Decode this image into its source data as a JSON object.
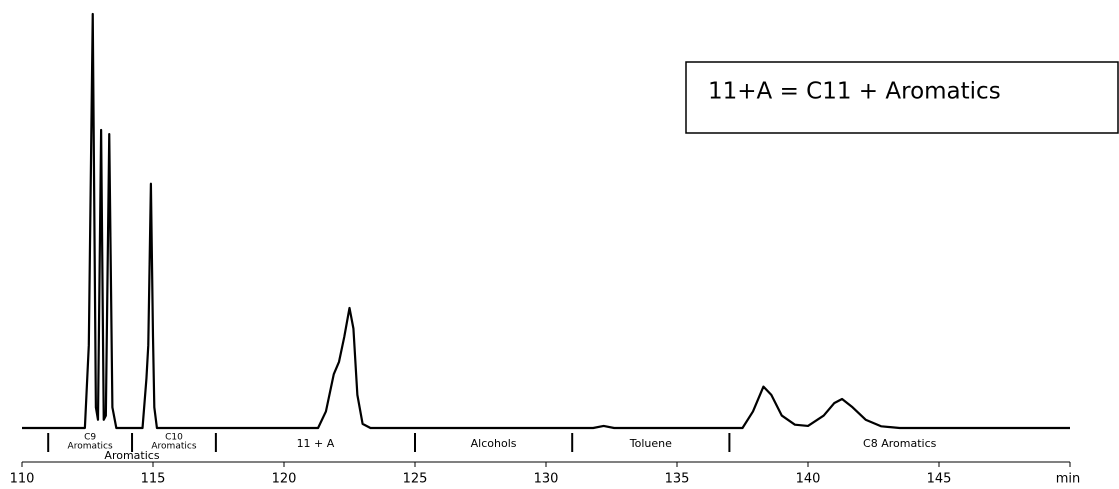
{
  "chart_data": {
    "type": "line",
    "note": "11+A = C11 + Aromatics",
    "x": [
      110,
      112.4,
      112.55,
      112.7,
      112.82,
      112.9,
      113.02,
      113.12,
      113.2,
      113.33,
      113.45,
      113.6,
      114.6,
      114.75,
      114.82,
      114.92,
      115.0,
      115.05,
      115.15,
      121.3,
      121.6,
      121.9,
      122.1,
      122.3,
      122.5,
      122.65,
      122.8,
      123.0,
      123.3,
      131.8,
      132.2,
      132.6,
      137.5,
      137.9,
      138.3,
      138.6,
      139.0,
      139.5,
      140.0,
      140.6,
      141.0,
      141.3,
      141.7,
      142.2,
      142.8,
      143.5,
      150
    ],
    "values": [
      0,
      0,
      20,
      100,
      5,
      2,
      72,
      2,
      3,
      71,
      5,
      0,
      0,
      12,
      20,
      59,
      22,
      5,
      0,
      0,
      4,
      13,
      16,
      22,
      29,
      24,
      8,
      1,
      0,
      0,
      0.5,
      0,
      0,
      4,
      10,
      8,
      3,
      0.8,
      0.5,
      3,
      6,
      7,
      5,
      2,
      0.4,
      0,
      0
    ],
    "color": "#000000",
    "xlim": [
      110,
      150
    ],
    "ylim": [
      0,
      100
    ],
    "xticks": [
      110,
      115,
      120,
      125,
      130,
      135,
      140,
      145,
      {
        "value": 150,
        "label": "min"
      }
    ],
    "dividers": [
      111.0,
      114.2,
      117.4,
      125.0,
      131.0,
      137.0
    ],
    "regions": [
      [
        "C9",
        "Aromatics"
      ],
      [
        "C10",
        "Aromatics"
      ],
      [
        "11 + A"
      ],
      [
        "Alcohols"
      ],
      [
        "Toluene"
      ],
      [
        "C8 Aromatics"
      ]
    ],
    "annotation": "Aromatics"
  }
}
